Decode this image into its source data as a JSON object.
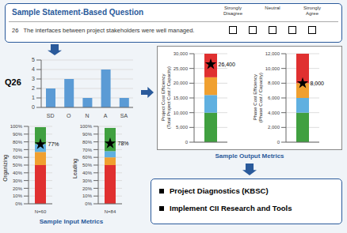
{
  "chart_data": [
    {
      "type": "form",
      "title": "Sample Statement-Based Question",
      "color": "#2a5a9b",
      "annotations": [
        "Strongly\nDisagree",
        "Neutral",
        "Strongly\nAgree"
      ],
      "subtitle": "26   The interfaces between project stakeholders were well managed."
    },
    {
      "type": "bar",
      "title": "Q26",
      "categories": [
        "SD",
        "O",
        "N",
        "A",
        "SA"
      ],
      "values": [
        2,
        3,
        1,
        4,
        1
      ],
      "color": "#5b9bd5",
      "ylim": [
        0,
        5
      ],
      "yticks": [
        0,
        1,
        2,
        3,
        4,
        5
      ],
      "grid": true
    },
    {
      "type": "bar",
      "stacked": true,
      "categories": [
        "N=60"
      ],
      "ylabel": "Organizing",
      "ylim": [
        0,
        100
      ],
      "yticks": [
        {
          "value": 0,
          "label": "0%"
        },
        {
          "value": 10,
          "label": "10%"
        },
        {
          "value": 20,
          "label": "20%"
        },
        {
          "value": 30,
          "label": "30%"
        },
        {
          "value": 40,
          "label": "40%"
        },
        {
          "value": 50,
          "label": "50%"
        },
        {
          "value": 60,
          "label": "60%"
        },
        {
          "value": 70,
          "label": "70%"
        },
        {
          "value": 80,
          "label": "80%"
        },
        {
          "value": 90,
          "label": "90%"
        },
        {
          "value": 100,
          "label": "100%"
        }
      ],
      "grid": true,
      "series": [
        {
          "color": "#e03030",
          "values": [
            50
          ]
        },
        {
          "color": "#f0a030",
          "values": [
            17
          ]
        },
        {
          "color": "#60b0e0",
          "values": [
            10
          ]
        },
        {
          "color": "#40a040",
          "values": [
            22
          ]
        },
        {
          "type": "scatter",
          "marker": "star",
          "color": "#000000",
          "values": [
            77
          ],
          "value_labels": [
            "77%"
          ],
          "data_labels": true
        }
      ]
    },
    {
      "type": "bar",
      "stacked": true,
      "categories": [
        "N=84"
      ],
      "ylabel": "Leading",
      "ylim": [
        0,
        100
      ],
      "yticks": [
        {
          "value": 0,
          "label": "0%"
        },
        {
          "value": 10,
          "label": "10%"
        },
        {
          "value": 20,
          "label": "20%"
        },
        {
          "value": 30,
          "label": "30%"
        },
        {
          "value": 40,
          "label": "40%"
        },
        {
          "value": 50,
          "label": "50%"
        },
        {
          "value": 60,
          "label": "60%"
        },
        {
          "value": 70,
          "label": "70%"
        },
        {
          "value": 80,
          "label": "80%"
        },
        {
          "value": 90,
          "label": "90%"
        },
        {
          "value": 100,
          "label": "100%"
        }
      ],
      "grid": true,
      "series": [
        {
          "color": "#e03030",
          "values": [
            50
          ]
        },
        {
          "color": "#f0a030",
          "values": [
            10
          ]
        },
        {
          "color": "#60b0e0",
          "values": [
            8
          ]
        },
        {
          "color": "#40a040",
          "values": [
            30
          ]
        },
        {
          "type": "scatter",
          "marker": "star",
          "color": "#000000",
          "values": [
            78
          ],
          "value_labels": [
            "78%"
          ],
          "data_labels": true
        }
      ]
    },
    {
      "type": "caption",
      "title": "Sample Input Metrics",
      "color": "#2a5a9b"
    },
    {
      "type": "bar",
      "stacked": true,
      "categories": [
        null
      ],
      "tick_labels": "y",
      "ylabel": "Project Cost Efficiency\n(Total Project Cost / Capacity)",
      "ylim": [
        0,
        30000
      ],
      "yticks": [
        0,
        {
          "value": 5000,
          "label": "5,000"
        },
        {
          "value": 10000,
          "label": "10,000"
        },
        {
          "value": 15000,
          "label": "15,000"
        },
        {
          "value": 20000,
          "label": "20,000"
        },
        {
          "value": 25000,
          "label": "25,000"
        },
        {
          "value": 30000,
          "label": "30,000"
        }
      ],
      "grid": true,
      "series": [
        {
          "color": "#40a040",
          "values": [
            10000
          ]
        },
        {
          "color": "#60b0e0",
          "values": [
            6000
          ]
        },
        {
          "color": "#f0a030",
          "values": [
            6000
          ]
        },
        {
          "color": "#e03030",
          "values": [
            8000
          ]
        },
        {
          "type": "scatter",
          "marker": "star",
          "color": "#000000",
          "values": [
            26400
          ],
          "value_labels": [
            "26,400"
          ],
          "data_labels": true
        }
      ]
    },
    {
      "type": "bar",
      "stacked": true,
      "categories": [
        null
      ],
      "tick_labels": "y",
      "ylabel": "Phase Cost Efficiency\n(Phase Cost / Capacity)",
      "ylim": [
        0,
        12000
      ],
      "yticks": [
        0,
        {
          "value": 2000,
          "label": "2,000"
        },
        {
          "value": 4000,
          "label": "4,000"
        },
        {
          "value": 6000,
          "label": "6,000"
        },
        {
          "value": 8000,
          "label": "8,000"
        },
        {
          "value": 10000,
          "label": "10,000"
        },
        {
          "value": 12000,
          "label": "12,000"
        }
      ],
      "grid": true,
      "series": [
        {
          "color": "#40a040",
          "values": [
            4000
          ]
        },
        {
          "color": "#60b0e0",
          "values": [
            2000
          ]
        },
        {
          "color": "#f0a030",
          "values": [
            2000
          ]
        },
        {
          "color": "#e03030",
          "values": [
            4000
          ]
        },
        {
          "type": "scatter",
          "marker": "star",
          "color": "#000000",
          "values": [
            8000
          ],
          "value_labels": [
            "8,000"
          ],
          "data_labels": true
        }
      ]
    },
    {
      "type": "caption",
      "title": "Sample Output Metrics",
      "color": "#2a5a9b"
    },
    {
      "type": "list",
      "marker": "square",
      "color": "#2a5a9b",
      "annotations": [
        "Project Diagnostics (KBSC)",
        "Implement CII Research and Tools"
      ]
    }
  ]
}
